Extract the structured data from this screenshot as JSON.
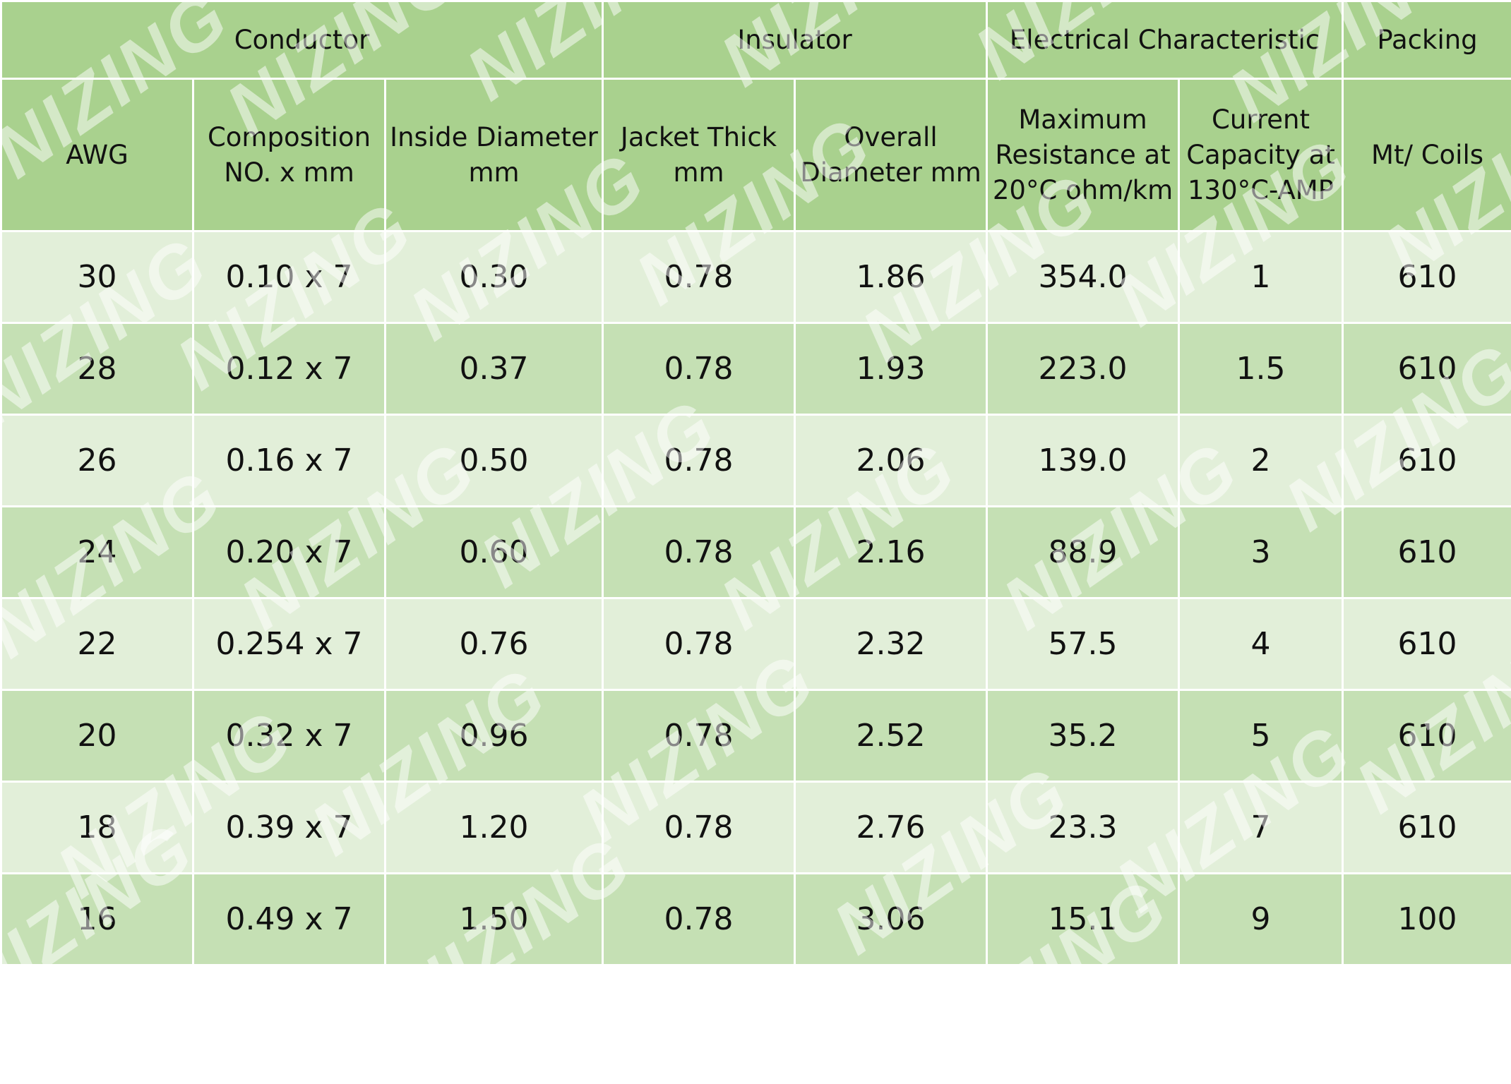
{
  "table": {
    "group_headers": [
      "Conductor",
      "Insulator",
      "Electrical Characteristic",
      "Packing"
    ],
    "columns": [
      [
        "AWG"
      ],
      [
        "Composition",
        "NO. x mm"
      ],
      [
        "Inside Diameter",
        "mm"
      ],
      [
        "Jacket Thick",
        "mm"
      ],
      [
        "Overall",
        "Diameter mm"
      ],
      [
        "Maximum",
        "Resistance at",
        "20°C ohm/km"
      ],
      [
        "Current",
        "Capacity at",
        "130°C-AMP"
      ],
      [
        "Mt/ Coils"
      ]
    ],
    "rows": [
      [
        "30",
        "0.10 x 7",
        "0.30",
        "0.78",
        "1.86",
        "354.0",
        "1",
        "610"
      ],
      [
        "28",
        "0.12 x 7",
        "0.37",
        "0.78",
        "1.93",
        "223.0",
        "1.5",
        "610"
      ],
      [
        "26",
        "0.16 x 7",
        "0.50",
        "0.78",
        "2.06",
        "139.0",
        "2",
        "610"
      ],
      [
        "24",
        "0.20 x 7",
        "0.60",
        "0.78",
        "2.16",
        "88.9",
        "3",
        "610"
      ],
      [
        "22",
        "0.254 x 7",
        "0.76",
        "0.78",
        "2.32",
        "57.5",
        "4",
        "610"
      ],
      [
        "20",
        "0.32 x 7",
        "0.96",
        "0.78",
        "2.52",
        "35.2",
        "5",
        "610"
      ],
      [
        "18",
        "0.39 x 7",
        "1.20",
        "0.78",
        "2.76",
        "23.3",
        "7",
        "610"
      ],
      [
        "16",
        "0.49 x 7",
        "1.50",
        "0.78",
        "3.06",
        "15.1",
        "9",
        "100"
      ]
    ]
  },
  "watermark": "NIZING",
  "colors": {
    "header_bg": "#a9d18e",
    "row_light": "#e2efd9",
    "row_dark": "#c5e0b4",
    "grid": "#ffffff"
  }
}
